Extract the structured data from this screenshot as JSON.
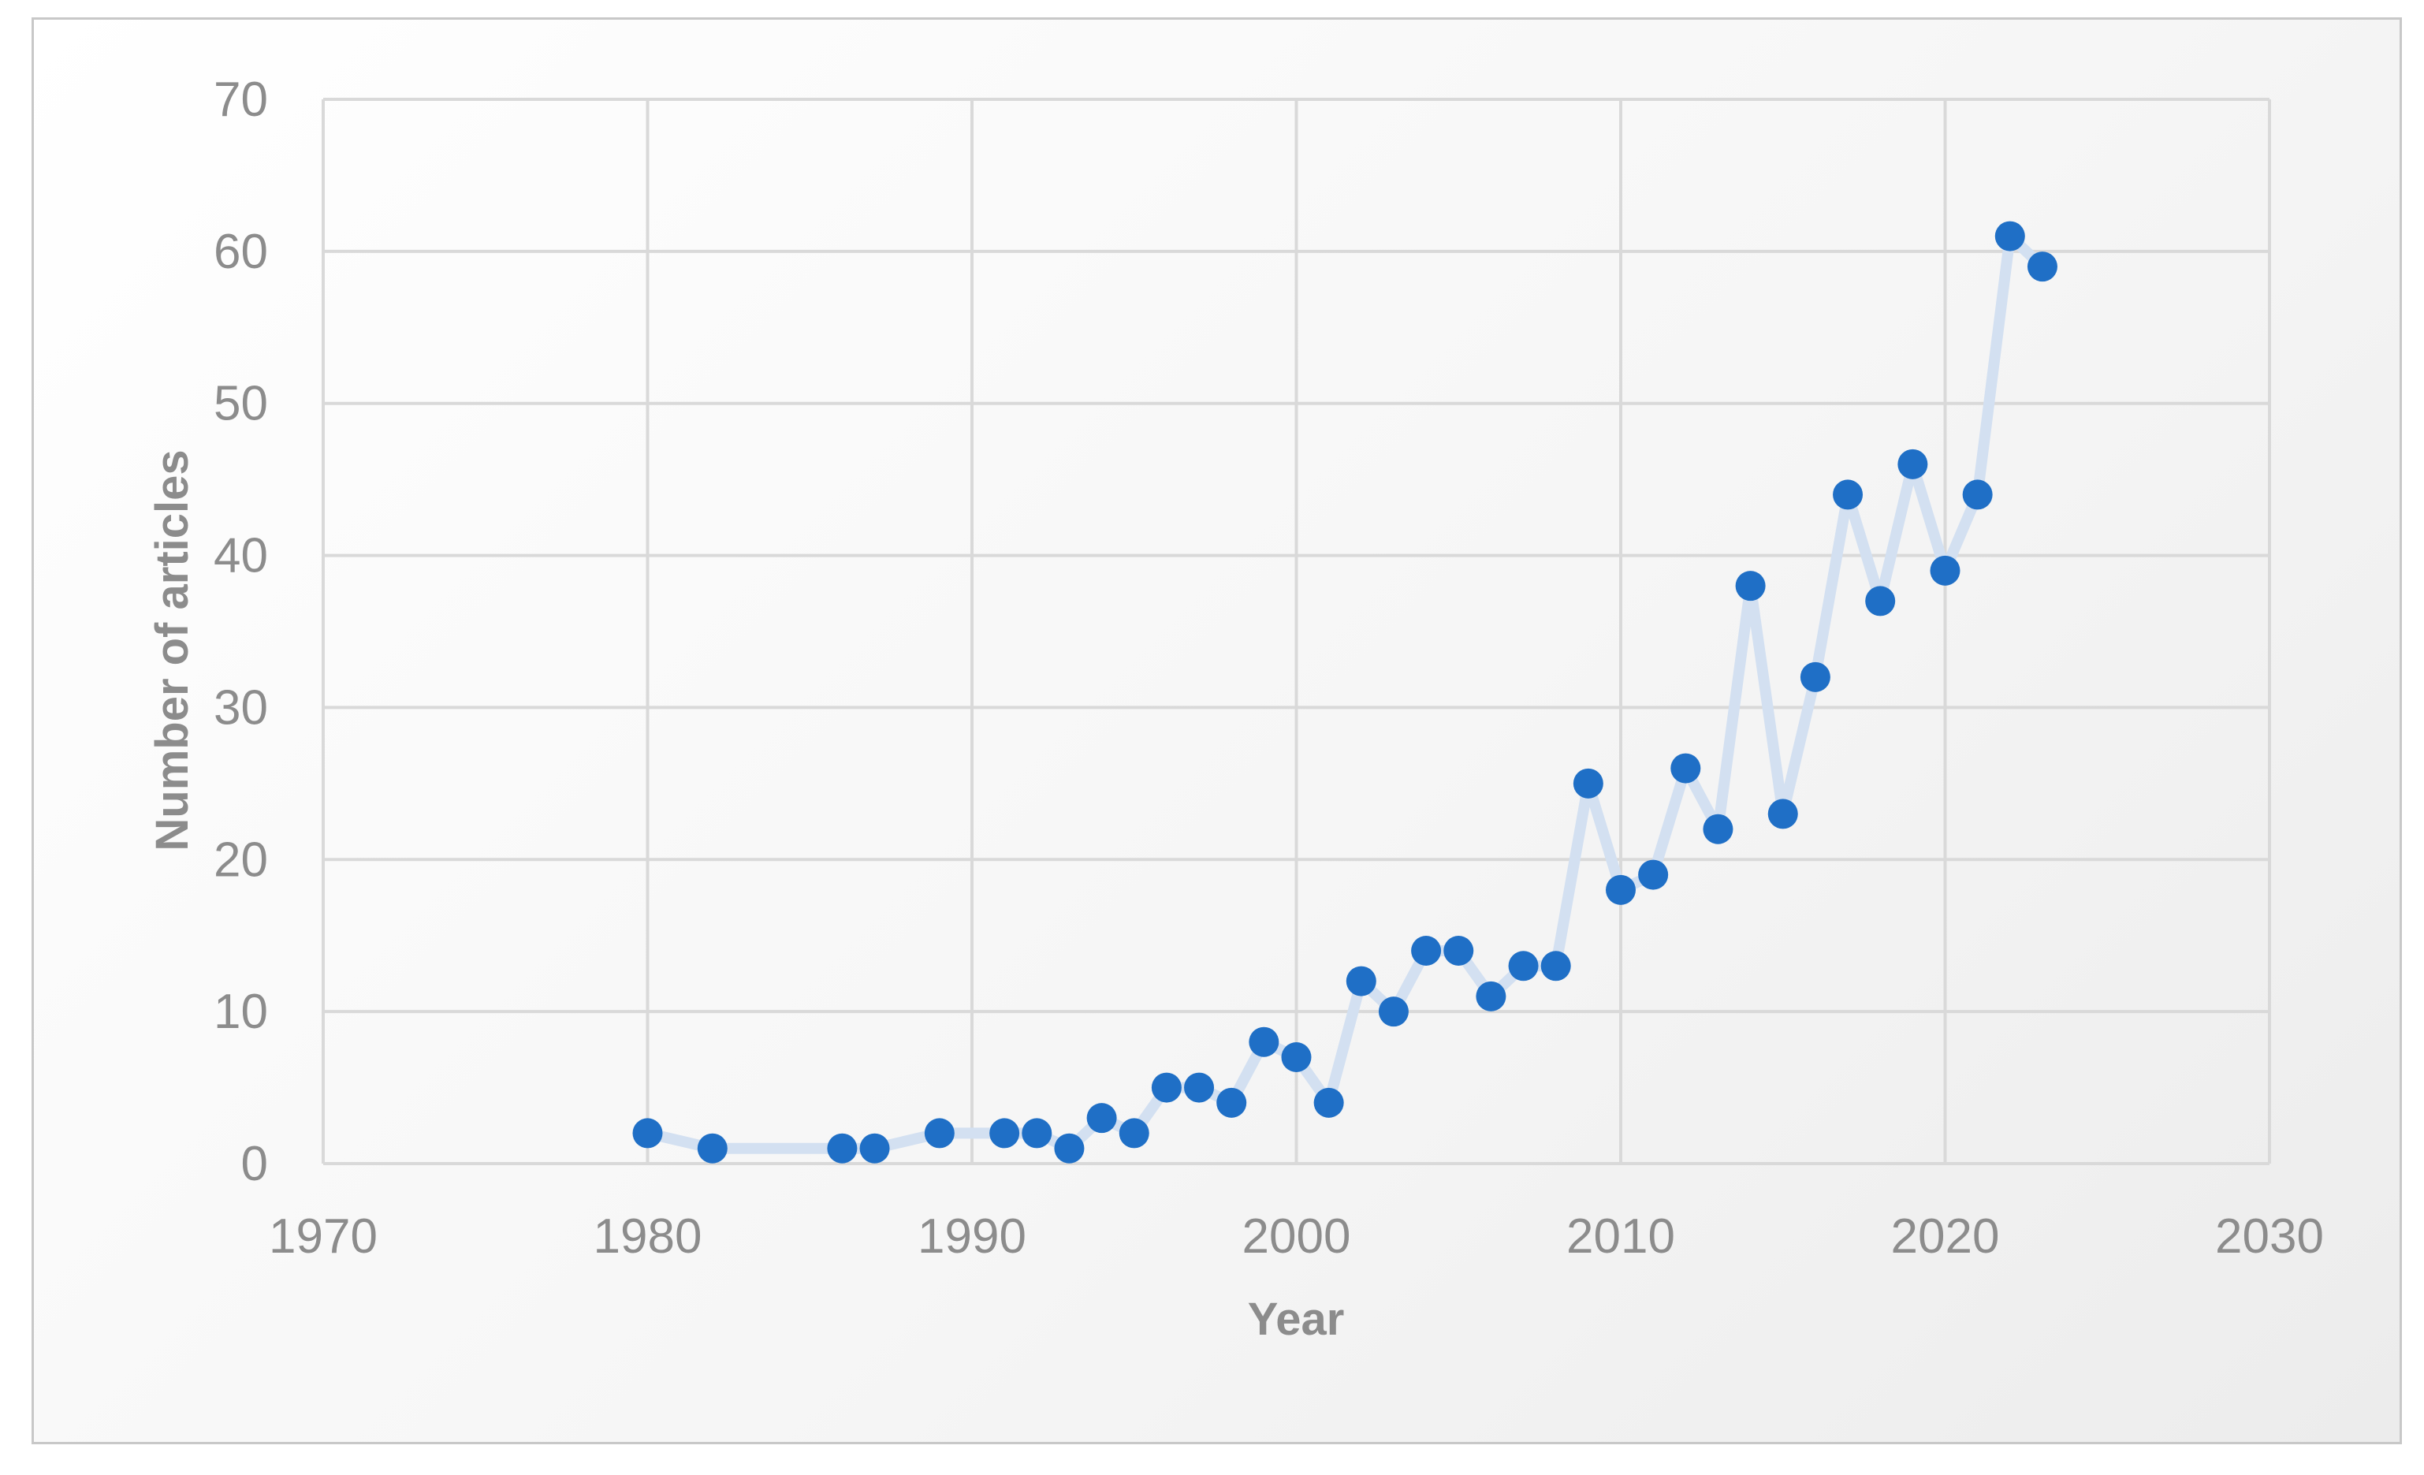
{
  "chart_data": {
    "type": "line",
    "title": "",
    "xlabel": "Year",
    "ylabel": "Number of articles",
    "xlim": [
      1970,
      2030
    ],
    "ylim": [
      0,
      70
    ],
    "x_ticks": [
      1970,
      1980,
      1990,
      2000,
      2010,
      2020,
      2030
    ],
    "y_ticks": [
      0,
      10,
      20,
      30,
      40,
      50,
      60,
      70
    ],
    "grid": true,
    "legend": "none",
    "series": [
      {
        "x": [
          1980,
          1982,
          1986,
          1987,
          1989,
          1991,
          1992,
          1993,
          1994,
          1995,
          1996,
          1997,
          1998,
          1999,
          2000,
          2001,
          2002,
          2003,
          2004,
          2005,
          2006,
          2007,
          2008,
          2009,
          2010,
          2011,
          2012,
          2013,
          2014,
          2015,
          2016,
          2017,
          2018,
          2019,
          2020,
          2021,
          2022,
          2023
        ],
        "y": [
          2,
          1,
          1,
          1,
          2,
          2,
          2,
          1,
          3,
          2,
          5,
          5,
          4,
          8,
          7,
          4,
          12,
          10,
          14,
          14,
          11,
          13,
          13,
          25,
          18,
          19,
          26,
          22,
          38,
          23,
          32,
          44,
          37,
          46,
          39,
          44,
          61,
          59
        ]
      }
    ],
    "colors": {
      "marker": "#1f6fc6",
      "line": "#d3e0f1",
      "grid": "#d9d9d9",
      "text": "#8c8c8c",
      "border": "#c8c8c8"
    }
  }
}
